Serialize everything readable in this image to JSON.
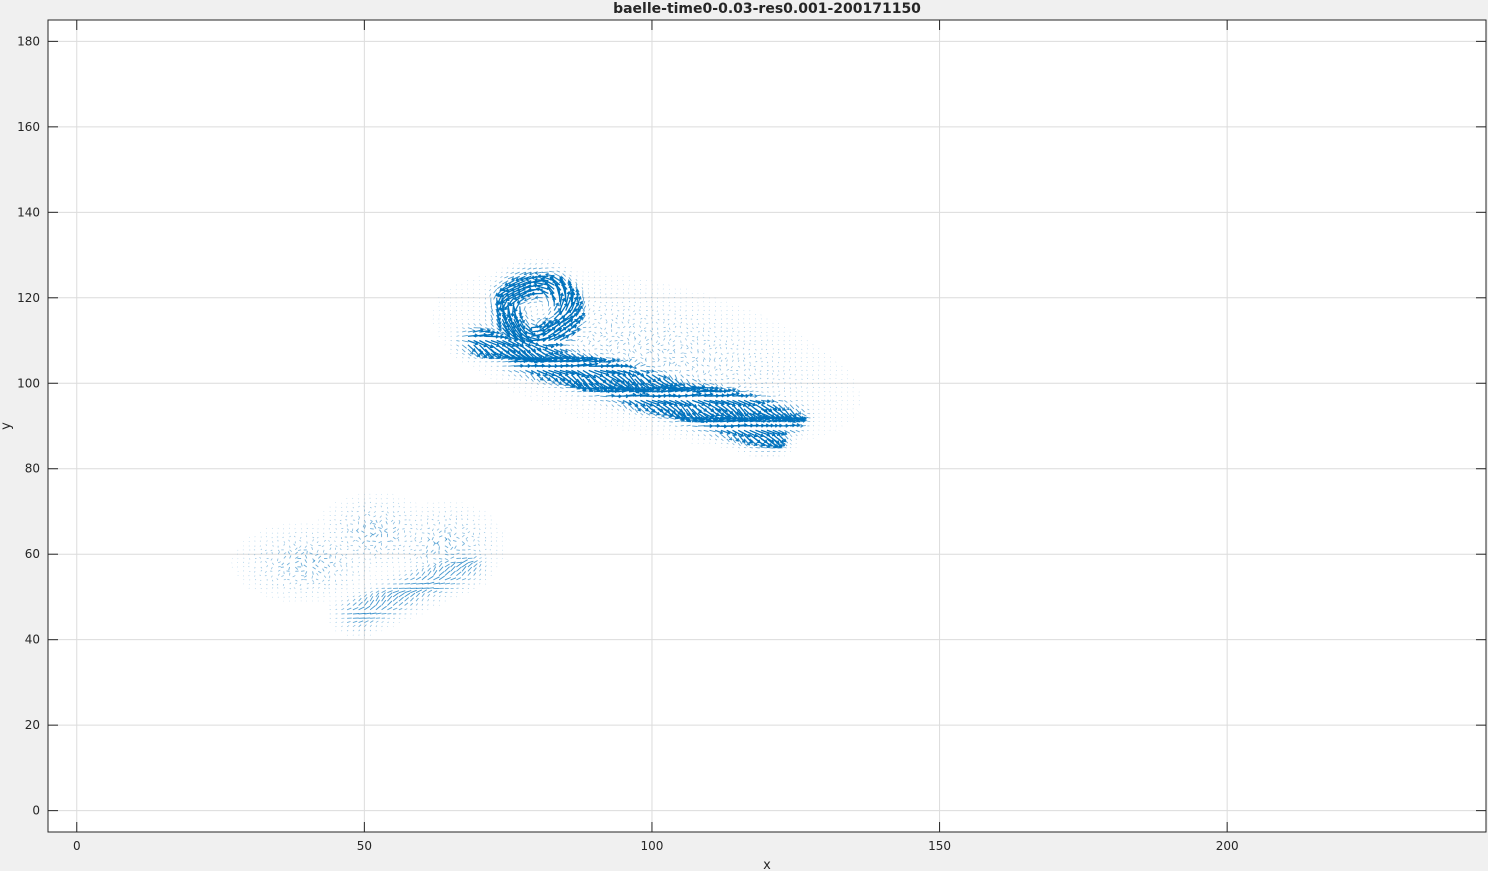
{
  "chart_data": {
    "type": "quiver",
    "title": "baelle-time0-0.03-res0.001-200171150",
    "xlabel": "x",
    "ylabel": "y",
    "xlim": [
      -5,
      245
    ],
    "ylim": [
      -5,
      185
    ],
    "xticks": [
      0,
      50,
      100,
      150,
      200
    ],
    "yticks": [
      0,
      20,
      40,
      60,
      80,
      100,
      120,
      140,
      160,
      180
    ],
    "grid": true,
    "box": true,
    "series_color": "#0072BD",
    "regions": [
      {
        "kind": "ring-lobe",
        "center": [
          80,
          117
        ],
        "extent_x": [
          71,
          87
        ],
        "extent_y": [
          108,
          127
        ],
        "max_magnitude": 1.0
      },
      {
        "kind": "curved-band",
        "from": [
          70,
          110
        ],
        "to": [
          123,
          92
        ],
        "max_magnitude": 1.0
      },
      {
        "kind": "curved-band",
        "from": [
          77,
          106
        ],
        "to": [
          120,
          88
        ],
        "max_magnitude": 0.95
      },
      {
        "kind": "diffuse-halo",
        "extent_x": [
          65,
          133
        ],
        "extent_y": [
          80,
          132
        ],
        "max_magnitude": 0.25
      },
      {
        "kind": "faint-blob",
        "center": [
          40,
          58
        ],
        "extent_x": [
          28,
          50
        ],
        "extent_y": [
          50,
          66
        ],
        "max_magnitude": 0.25
      },
      {
        "kind": "faint-blob",
        "center": [
          52,
          65
        ],
        "extent_x": [
          42,
          60
        ],
        "extent_y": [
          58,
          74
        ],
        "max_magnitude": 0.25
      },
      {
        "kind": "faint-band",
        "from": [
          49,
          46
        ],
        "to": [
          67,
          57
        ],
        "max_magnitude": 0.45
      },
      {
        "kind": "faint-blob",
        "center": [
          64,
          62
        ],
        "extent_x": [
          56,
          74
        ],
        "extent_y": [
          54,
          72
        ],
        "max_magnitude": 0.25
      }
    ]
  }
}
